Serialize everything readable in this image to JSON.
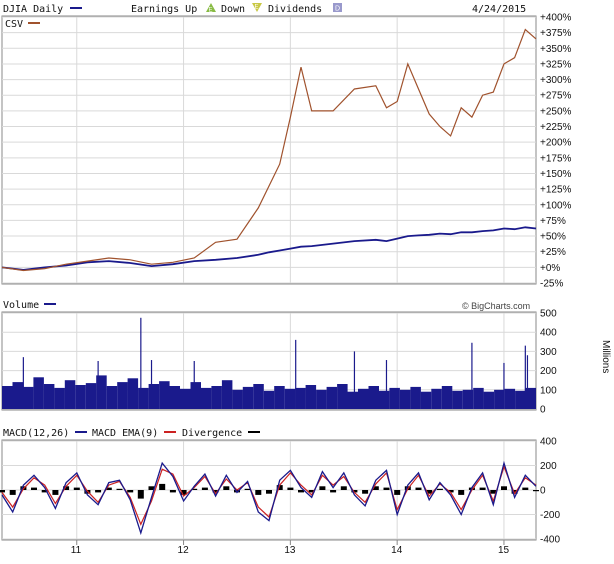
{
  "header": {
    "djia_label": "DJIA Daily",
    "earnings_label": "Earnings Up",
    "earnings_up_glyph": "E",
    "down_label": "Down",
    "earnings_down_glyph": "E",
    "dividends_label": "Dividends",
    "dividends_glyph": "D",
    "date": "4/24/2015",
    "csv_label": "CSV"
  },
  "volume": {
    "label": "Volume",
    "credit": "© BigCharts.com",
    "unit": "Millions"
  },
  "macd": {
    "label": "MACD(12,26)",
    "ema_label": "MACD EMA(9)",
    "divergence_label": "Divergence"
  },
  "colors": {
    "djia": "#1a1a8c",
    "csv": "#a0522d",
    "volume": "#1a1a8c",
    "macd": "#1a1a8c",
    "ema": "#cc2222",
    "divergence": "#000000",
    "grid": "#d9d9d9",
    "earnings_up": "#88bb44",
    "earnings_down": "#c8c844",
    "dividends": "#9999cc"
  },
  "chart_data": [
    {
      "type": "line",
      "title": "DJIA Daily vs CSV",
      "x_ticks": [
        "11",
        "12",
        "13",
        "14",
        "15"
      ],
      "y_ticks": [
        "+400%",
        "+375%",
        "+350%",
        "+325%",
        "+300%",
        "+275%",
        "+250%",
        "+225%",
        "+200%",
        "+175%",
        "+150%",
        "+125%",
        "+100%",
        "+75%",
        "+50%",
        "+25%",
        "+0%",
        "-25%"
      ],
      "ylim": [
        -25,
        400
      ],
      "x": [
        10.3,
        10.5,
        10.7,
        10.9,
        11.1,
        11.3,
        11.5,
        11.7,
        11.9,
        12.1,
        12.3,
        12.5,
        12.7,
        12.8,
        12.9,
        13.0,
        13.1,
        13.2,
        13.4,
        13.6,
        13.8,
        13.9,
        14.0,
        14.1,
        14.2,
        14.3,
        14.4,
        14.5,
        14.6,
        14.7,
        14.8,
        14.9,
        15.0,
        15.1,
        15.2,
        15.3
      ],
      "series": [
        {
          "name": "CSV",
          "values": [
            0,
            -5,
            -2,
            5,
            10,
            15,
            12,
            5,
            8,
            15,
            40,
            45,
            95,
            130,
            165,
            240,
            320,
            250,
            250,
            285,
            290,
            255,
            265,
            325,
            285,
            245,
            225,
            210,
            255,
            240,
            275,
            280,
            325,
            335,
            380,
            365
          ]
        },
        {
          "name": "DJIA Daily",
          "values": [
            0,
            -4,
            0,
            3,
            8,
            10,
            7,
            2,
            5,
            10,
            12,
            15,
            20,
            24,
            27,
            30,
            33,
            34,
            38,
            42,
            44,
            42,
            46,
            50,
            51,
            52,
            54,
            53,
            56,
            56,
            58,
            59,
            62,
            61,
            64,
            62
          ]
        }
      ]
    },
    {
      "type": "bar",
      "title": "Volume",
      "ylabel": "Millions",
      "y_ticks": [
        "500",
        "400",
        "300",
        "200",
        "100",
        "0"
      ],
      "ylim": [
        0,
        500
      ],
      "x_range": [
        10.3,
        15.3
      ],
      "values": [
        120,
        140,
        115,
        165,
        130,
        110,
        150,
        125,
        135,
        175,
        120,
        140,
        160,
        110,
        130,
        145,
        120,
        105,
        140,
        110,
        120,
        150,
        100,
        115,
        130,
        95,
        120,
        105,
        110,
        125,
        100,
        115,
        130,
        90,
        105,
        120,
        95,
        110,
        100,
        115,
        90,
        105,
        120,
        95,
        100,
        110,
        90,
        100,
        105,
        95,
        110
      ],
      "spikes": [
        {
          "x": 10.5,
          "value": 270
        },
        {
          "x": 11.2,
          "value": 250
        },
        {
          "x": 11.6,
          "value": 475
        },
        {
          "x": 11.7,
          "value": 255
        },
        {
          "x": 12.1,
          "value": 250
        },
        {
          "x": 13.05,
          "value": 360
        },
        {
          "x": 13.6,
          "value": 300
        },
        {
          "x": 13.9,
          "value": 255
        },
        {
          "x": 14.7,
          "value": 345
        },
        {
          "x": 15.0,
          "value": 240
        },
        {
          "x": 15.2,
          "value": 330
        },
        {
          "x": 15.22,
          "value": 280
        }
      ]
    },
    {
      "type": "line",
      "title": "MACD(12,26) / MACD EMA(9) / Divergence",
      "y_ticks": [
        "400",
        "200",
        "0",
        "-200",
        "-400"
      ],
      "ylim": [
        -400,
        400
      ],
      "x": [
        10.3,
        10.4,
        10.5,
        10.6,
        10.7,
        10.8,
        10.9,
        11.0,
        11.1,
        11.2,
        11.3,
        11.4,
        11.5,
        11.6,
        11.7,
        11.8,
        11.9,
        12.0,
        12.1,
        12.2,
        12.3,
        12.4,
        12.5,
        12.6,
        12.7,
        12.8,
        12.9,
        13.0,
        13.1,
        13.2,
        13.3,
        13.4,
        13.5,
        13.6,
        13.7,
        13.8,
        13.9,
        14.0,
        14.1,
        14.2,
        14.3,
        14.4,
        14.5,
        14.6,
        14.7,
        14.8,
        14.9,
        15.0,
        15.1,
        15.2,
        15.3
      ],
      "series": [
        {
          "name": "MACD(12,26)",
          "values": [
            -40,
            -180,
            40,
            120,
            20,
            -150,
            60,
            140,
            -40,
            -120,
            60,
            80,
            -80,
            -350,
            -60,
            220,
            110,
            -90,
            30,
            130,
            -50,
            120,
            -20,
            70,
            -180,
            -250,
            80,
            160,
            20,
            -60,
            150,
            20,
            140,
            -40,
            -130,
            80,
            160,
            -200,
            40,
            140,
            -80,
            60,
            -40,
            -200,
            20,
            140,
            -120,
            220,
            -60,
            120,
            30
          ]
        },
        {
          "name": "MACD EMA(9)",
          "values": [
            -20,
            -140,
            10,
            100,
            40,
            -110,
            30,
            120,
            -10,
            -100,
            40,
            70,
            -60,
            -280,
            -90,
            170,
            130,
            -50,
            20,
            110,
            -30,
            90,
            0,
            60,
            -140,
            -220,
            40,
            140,
            40,
            -40,
            120,
            40,
            110,
            -20,
            -100,
            50,
            140,
            -160,
            10,
            120,
            -50,
            50,
            -20,
            -160,
            0,
            120,
            -90,
            190,
            -30,
            100,
            40
          ]
        },
        {
          "name": "Divergence",
          "values": [
            -20,
            -40,
            30,
            20,
            -20,
            -40,
            30,
            20,
            -30,
            -20,
            20,
            10,
            -20,
            -70,
            30,
            50,
            -20,
            -40,
            10,
            20,
            -20,
            30,
            -20,
            10,
            -40,
            -30,
            40,
            20,
            -20,
            -20,
            30,
            -20,
            30,
            -20,
            -30,
            30,
            20,
            -40,
            30,
            20,
            -30,
            10,
            -20,
            -40,
            20,
            20,
            -30,
            30,
            -30,
            20,
            -10
          ]
        }
      ]
    }
  ]
}
